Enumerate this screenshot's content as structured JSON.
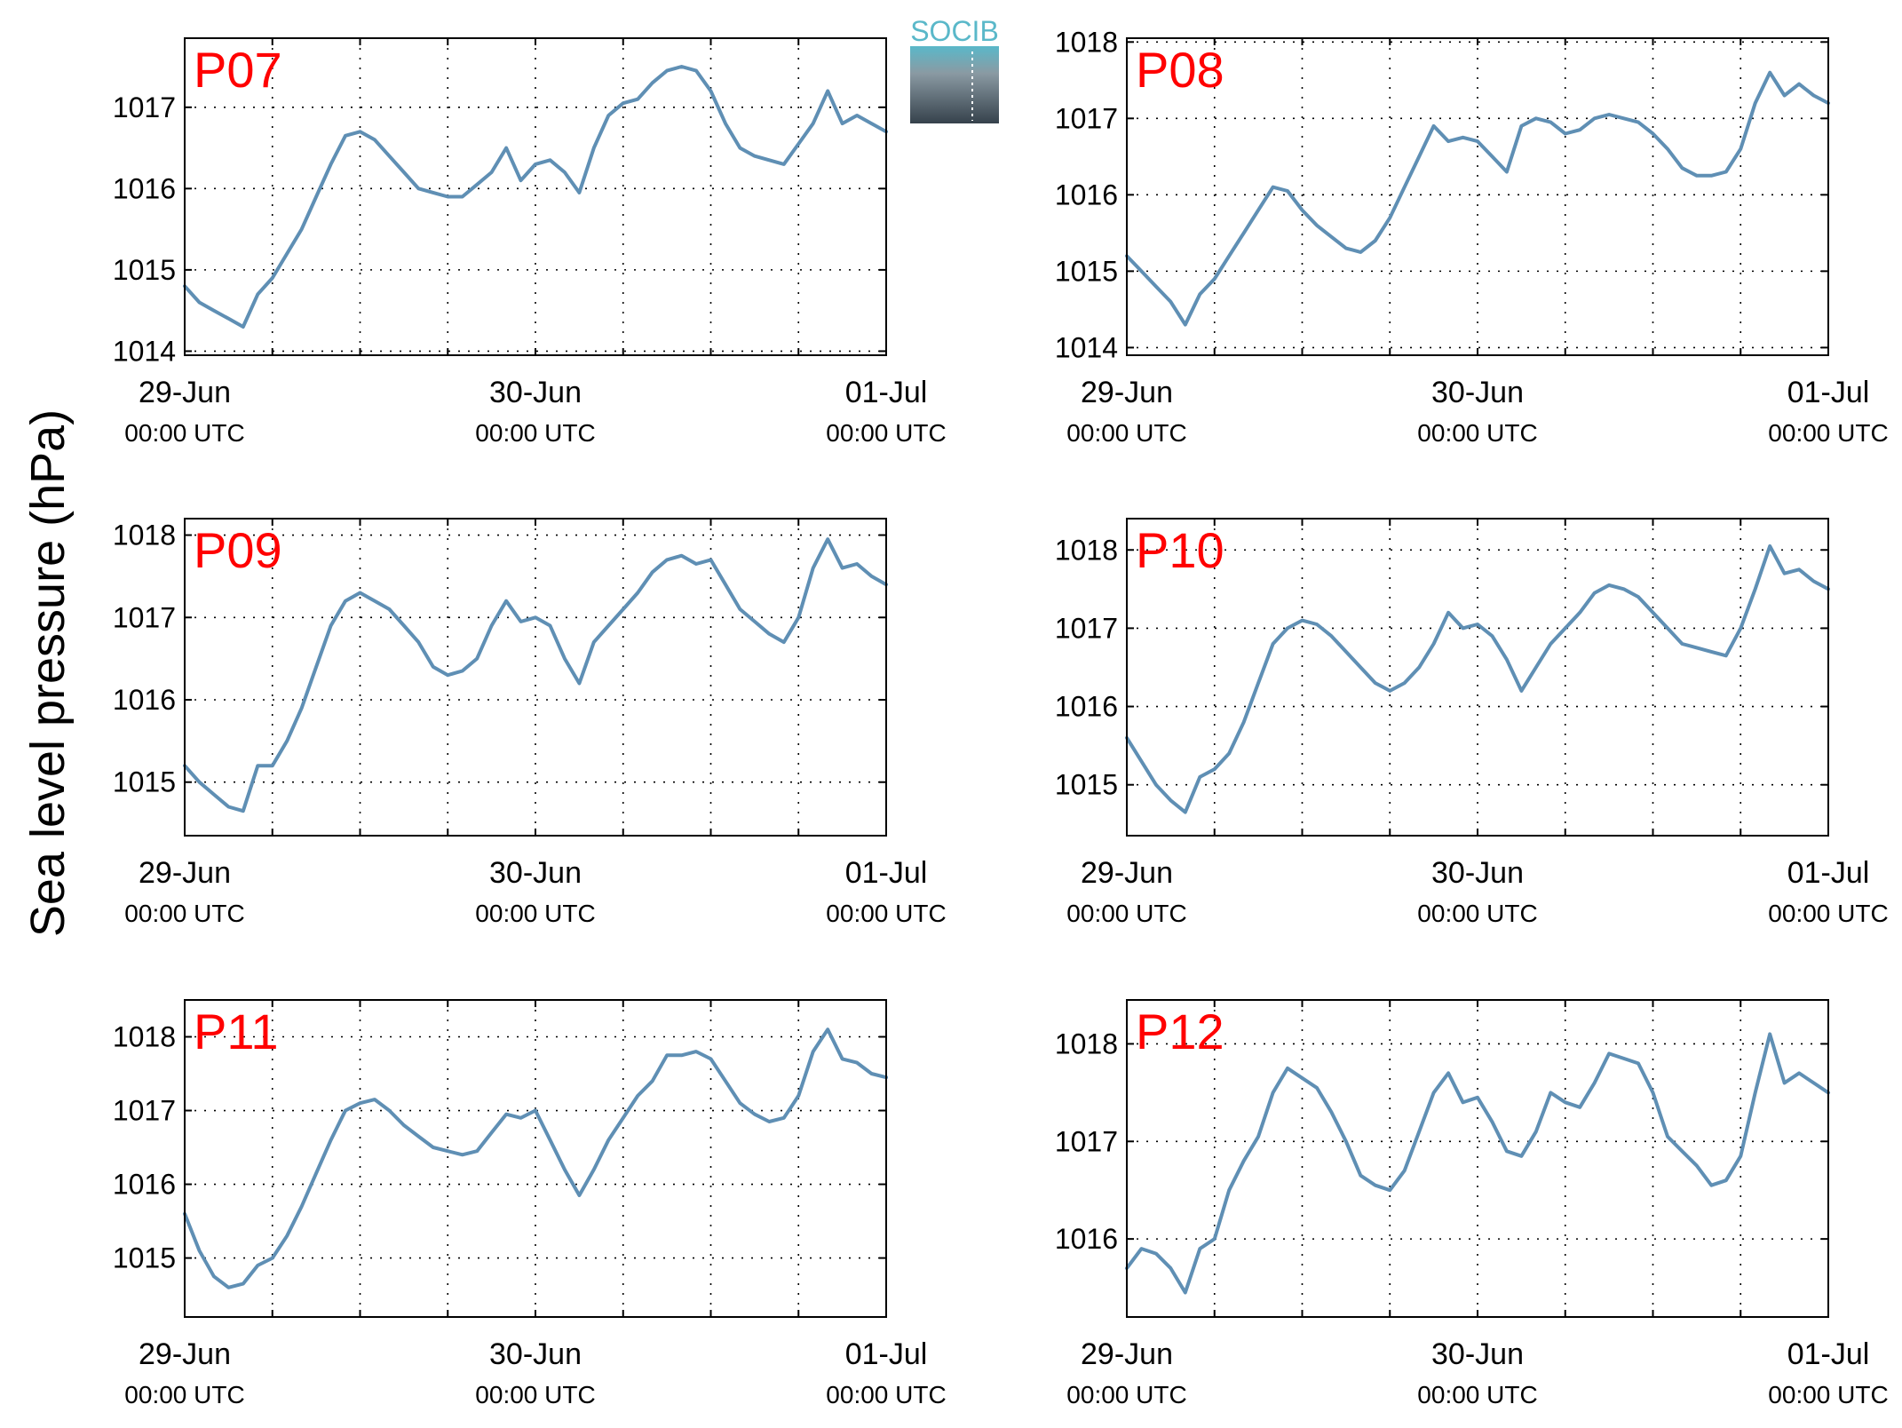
{
  "figure": {
    "ylabel": "Sea level pressure (hPa)",
    "logo_text": "SOCIB",
    "series_color": "#5f8fb4",
    "label_color": "#ff0000"
  },
  "chart_data": [
    {
      "type": "line",
      "panel_label": "P07",
      "ylabel": "Sea level pressure (hPa)",
      "ylim": [
        1013.95,
        1017.85
      ],
      "yticks": [
        1014,
        1015,
        1016,
        1017
      ],
      "ytick_labels": [
        "1014",
        "1015",
        "1016",
        "1017"
      ],
      "xlim": [
        0,
        48
      ],
      "xticks": [
        0,
        24,
        48
      ],
      "xtick_labels": [
        [
          "29-Jun",
          "00:00 UTC"
        ],
        [
          "30-Jun",
          "00:00 UTC"
        ],
        [
          "01-Jul",
          "00:00 UTC"
        ]
      ],
      "grid": true,
      "series": [
        {
          "x": [
            0,
            1,
            2,
            3,
            4,
            5,
            6,
            7,
            8,
            9,
            10,
            11,
            12,
            13,
            14,
            15,
            16,
            17,
            18,
            19,
            20,
            21,
            22,
            23,
            24,
            25,
            26,
            27,
            28,
            29,
            30,
            31,
            32,
            33,
            34,
            35,
            36,
            37,
            38,
            39,
            40,
            41,
            42,
            43,
            44,
            45,
            46,
            47,
            48
          ],
          "values": [
            1014.8,
            1014.6,
            1014.5,
            1014.4,
            1014.3,
            1014.7,
            1014.9,
            1015.2,
            1015.5,
            1015.9,
            1016.3,
            1016.65,
            1016.7,
            1016.6,
            1016.4,
            1016.2,
            1016.0,
            1015.95,
            1015.9,
            1015.9,
            1016.05,
            1016.2,
            1016.5,
            1016.1,
            1016.3,
            1016.35,
            1016.2,
            1015.95,
            1016.5,
            1016.9,
            1017.05,
            1017.1,
            1017.3,
            1017.45,
            1017.5,
            1017.45,
            1017.2,
            1016.8,
            1016.5,
            1016.4,
            1016.35,
            1016.3,
            1016.55,
            1016.8,
            1017.2,
            1016.8,
            1016.9,
            1016.8,
            1016.7
          ]
        }
      ]
    },
    {
      "type": "line",
      "panel_label": "P08",
      "ylabel": "Sea level pressure (hPa)",
      "ylim": [
        1013.9,
        1018.05
      ],
      "yticks": [
        1014,
        1015,
        1016,
        1017,
        1018
      ],
      "ytick_labels": [
        "1014",
        "1015",
        "1016",
        "1017",
        "1018"
      ],
      "xlim": [
        0,
        48
      ],
      "xticks": [
        0,
        24,
        48
      ],
      "xtick_labels": [
        [
          "29-Jun",
          "00:00 UTC"
        ],
        [
          "30-Jun",
          "00:00 UTC"
        ],
        [
          "01-Jul",
          "00:00 UTC"
        ]
      ],
      "grid": true,
      "series": [
        {
          "x": [
            0,
            1,
            2,
            3,
            4,
            5,
            6,
            7,
            8,
            9,
            10,
            11,
            12,
            13,
            14,
            15,
            16,
            17,
            18,
            19,
            20,
            21,
            22,
            23,
            24,
            25,
            26,
            27,
            28,
            29,
            30,
            31,
            32,
            33,
            34,
            35,
            36,
            37,
            38,
            39,
            40,
            41,
            42,
            43,
            44,
            45,
            46,
            47,
            48
          ],
          "values": [
            1015.2,
            1015.0,
            1014.8,
            1014.6,
            1014.3,
            1014.7,
            1014.9,
            1015.2,
            1015.5,
            1015.8,
            1016.1,
            1016.05,
            1015.8,
            1015.6,
            1015.45,
            1015.3,
            1015.25,
            1015.4,
            1015.7,
            1016.1,
            1016.5,
            1016.9,
            1016.7,
            1016.75,
            1016.7,
            1016.5,
            1016.3,
            1016.9,
            1017.0,
            1016.95,
            1016.8,
            1016.85,
            1017.0,
            1017.05,
            1017.0,
            1016.95,
            1016.8,
            1016.6,
            1016.35,
            1016.25,
            1016.25,
            1016.3,
            1016.6,
            1017.2,
            1017.6,
            1017.3,
            1017.45,
            1017.3,
            1017.2
          ]
        }
      ]
    },
    {
      "type": "line",
      "panel_label": "P09",
      "ylabel": "Sea level pressure (hPa)",
      "ylim": [
        1014.35,
        1018.2
      ],
      "yticks": [
        1015,
        1016,
        1017,
        1018
      ],
      "ytick_labels": [
        "1015",
        "1016",
        "1017",
        "1018"
      ],
      "xlim": [
        0,
        48
      ],
      "xticks": [
        0,
        24,
        48
      ],
      "xtick_labels": [
        [
          "29-Jun",
          "00:00 UTC"
        ],
        [
          "30-Jun",
          "00:00 UTC"
        ],
        [
          "01-Jul",
          "00:00 UTC"
        ]
      ],
      "grid": true,
      "series": [
        {
          "x": [
            0,
            1,
            2,
            3,
            4,
            5,
            6,
            7,
            8,
            9,
            10,
            11,
            12,
            13,
            14,
            15,
            16,
            17,
            18,
            19,
            20,
            21,
            22,
            23,
            24,
            25,
            26,
            27,
            28,
            29,
            30,
            31,
            32,
            33,
            34,
            35,
            36,
            37,
            38,
            39,
            40,
            41,
            42,
            43,
            44,
            45,
            46,
            47,
            48
          ],
          "values": [
            1015.2,
            1015.0,
            1014.85,
            1014.7,
            1014.65,
            1015.2,
            1015.2,
            1015.5,
            1015.9,
            1016.4,
            1016.9,
            1017.2,
            1017.3,
            1017.2,
            1017.1,
            1016.9,
            1016.7,
            1016.4,
            1016.3,
            1016.35,
            1016.5,
            1016.9,
            1017.2,
            1016.95,
            1017.0,
            1016.9,
            1016.5,
            1016.2,
            1016.7,
            1016.9,
            1017.1,
            1017.3,
            1017.55,
            1017.7,
            1017.75,
            1017.65,
            1017.7,
            1017.4,
            1017.1,
            1016.95,
            1016.8,
            1016.7,
            1017.0,
            1017.6,
            1017.95,
            1017.6,
            1017.65,
            1017.5,
            1017.4
          ]
        }
      ]
    },
    {
      "type": "line",
      "panel_label": "P10",
      "ylabel": "Sea level pressure (hPa)",
      "ylim": [
        1014.35,
        1018.4
      ],
      "yticks": [
        1015,
        1016,
        1017,
        1018
      ],
      "ytick_labels": [
        "1015",
        "1016",
        "1017",
        "1018"
      ],
      "xlim": [
        0,
        48
      ],
      "xticks": [
        0,
        24,
        48
      ],
      "xtick_labels": [
        [
          "29-Jun",
          "00:00 UTC"
        ],
        [
          "30-Jun",
          "00:00 UTC"
        ],
        [
          "01-Jul",
          "00:00 UTC"
        ]
      ],
      "grid": true,
      "series": [
        {
          "x": [
            0,
            1,
            2,
            3,
            4,
            5,
            6,
            7,
            8,
            9,
            10,
            11,
            12,
            13,
            14,
            15,
            16,
            17,
            18,
            19,
            20,
            21,
            22,
            23,
            24,
            25,
            26,
            27,
            28,
            29,
            30,
            31,
            32,
            33,
            34,
            35,
            36,
            37,
            38,
            39,
            40,
            41,
            42,
            43,
            44,
            45,
            46,
            47,
            48
          ],
          "values": [
            1015.6,
            1015.3,
            1015.0,
            1014.8,
            1014.65,
            1015.1,
            1015.2,
            1015.4,
            1015.8,
            1016.3,
            1016.8,
            1017.0,
            1017.1,
            1017.05,
            1016.9,
            1016.7,
            1016.5,
            1016.3,
            1016.2,
            1016.3,
            1016.5,
            1016.8,
            1017.2,
            1017.0,
            1017.05,
            1016.9,
            1016.6,
            1016.2,
            1016.5,
            1016.8,
            1017.0,
            1017.2,
            1017.45,
            1017.55,
            1017.5,
            1017.4,
            1017.2,
            1017.0,
            1016.8,
            1016.75,
            1016.7,
            1016.65,
            1017.0,
            1017.5,
            1018.05,
            1017.7,
            1017.75,
            1017.6,
            1017.5
          ]
        }
      ]
    },
    {
      "type": "line",
      "panel_label": "P11",
      "ylabel": "Sea level pressure (hPa)",
      "ylim": [
        1014.2,
        1018.5
      ],
      "yticks": [
        1015,
        1016,
        1017,
        1018
      ],
      "ytick_labels": [
        "1015",
        "1016",
        "1017",
        "1018"
      ],
      "xlim": [
        0,
        48
      ],
      "xticks": [
        0,
        24,
        48
      ],
      "xtick_labels": [
        [
          "29-Jun",
          "00:00 UTC"
        ],
        [
          "30-Jun",
          "00:00 UTC"
        ],
        [
          "01-Jul",
          "00:00 UTC"
        ]
      ],
      "grid": true,
      "series": [
        {
          "x": [
            0,
            1,
            2,
            3,
            4,
            5,
            6,
            7,
            8,
            9,
            10,
            11,
            12,
            13,
            14,
            15,
            16,
            17,
            18,
            19,
            20,
            21,
            22,
            23,
            24,
            25,
            26,
            27,
            28,
            29,
            30,
            31,
            32,
            33,
            34,
            35,
            36,
            37,
            38,
            39,
            40,
            41,
            42,
            43,
            44,
            45,
            46,
            47,
            48
          ],
          "values": [
            1015.6,
            1015.1,
            1014.75,
            1014.6,
            1014.65,
            1014.9,
            1015.0,
            1015.3,
            1015.7,
            1016.15,
            1016.6,
            1017.0,
            1017.1,
            1017.15,
            1017.0,
            1016.8,
            1016.65,
            1016.5,
            1016.45,
            1016.4,
            1016.45,
            1016.7,
            1016.95,
            1016.9,
            1017.0,
            1016.6,
            1016.2,
            1015.85,
            1016.2,
            1016.6,
            1016.9,
            1017.2,
            1017.4,
            1017.75,
            1017.75,
            1017.8,
            1017.7,
            1017.4,
            1017.1,
            1016.95,
            1016.85,
            1016.9,
            1017.2,
            1017.8,
            1018.1,
            1017.7,
            1017.65,
            1017.5,
            1017.45
          ]
        }
      ]
    },
    {
      "type": "line",
      "panel_label": "P12",
      "ylabel": "Sea level pressure (hPa)",
      "ylim": [
        1015.2,
        1018.45
      ],
      "yticks": [
        1016,
        1017,
        1018
      ],
      "ytick_labels": [
        "1016",
        "1017",
        "1018"
      ],
      "xlim": [
        0,
        48
      ],
      "xticks": [
        0,
        24,
        48
      ],
      "xtick_labels": [
        [
          "29-Jun",
          "00:00 UTC"
        ],
        [
          "30-Jun",
          "00:00 UTC"
        ],
        [
          "01-Jul",
          "00:00 UTC"
        ]
      ],
      "grid": true,
      "series": [
        {
          "x": [
            0,
            1,
            2,
            3,
            4,
            5,
            6,
            7,
            8,
            9,
            10,
            11,
            12,
            13,
            14,
            15,
            16,
            17,
            18,
            19,
            20,
            21,
            22,
            23,
            24,
            25,
            26,
            27,
            28,
            29,
            30,
            31,
            32,
            33,
            34,
            35,
            36,
            37,
            38,
            39,
            40,
            41,
            42,
            43,
            44,
            45,
            46,
            47,
            48
          ],
          "values": [
            1015.7,
            1015.9,
            1015.85,
            1015.7,
            1015.45,
            1015.9,
            1016.0,
            1016.5,
            1016.8,
            1017.05,
            1017.5,
            1017.75,
            1017.65,
            1017.55,
            1017.3,
            1017.0,
            1016.65,
            1016.55,
            1016.5,
            1016.7,
            1017.1,
            1017.5,
            1017.7,
            1017.4,
            1017.45,
            1017.2,
            1016.9,
            1016.85,
            1017.1,
            1017.5,
            1017.4,
            1017.35,
            1017.6,
            1017.9,
            1017.85,
            1017.8,
            1017.5,
            1017.05,
            1016.9,
            1016.75,
            1016.55,
            1016.6,
            1016.85,
            1017.5,
            1018.1,
            1017.6,
            1017.7,
            1017.6,
            1017.5
          ]
        }
      ]
    }
  ]
}
